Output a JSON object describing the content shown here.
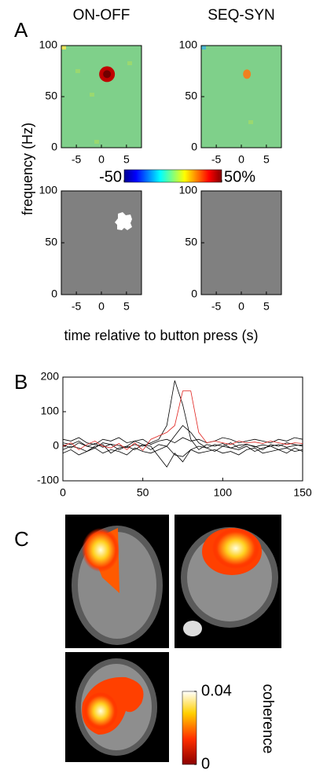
{
  "figure": {
    "panels": [
      "A",
      "B",
      "C"
    ],
    "ylabel": "frequency  (Hz)",
    "xlabel": "time relative to button press (s)"
  },
  "chart_data": [
    {
      "type": "heatmap",
      "title": "ON-OFF",
      "xlim": [
        -8,
        8
      ],
      "xticks": [
        -5,
        0,
        5
      ],
      "ylim": [
        0,
        100
      ],
      "yticks": [
        0,
        50,
        100
      ]
    },
    {
      "type": "heatmap",
      "title": "SEQ-SYN",
      "xlim": [
        -8,
        8
      ],
      "xticks": [
        -5,
        0,
        5
      ],
      "ylim": [
        0,
        100
      ],
      "yticks": [
        0,
        50,
        100
      ]
    },
    {
      "type": "mask",
      "xlim": [
        -8,
        8
      ],
      "xticks": [
        -5,
        0,
        5
      ],
      "ylim": [
        0,
        100
      ],
      "yticks": [
        0,
        50,
        100
      ],
      "color": "#808080"
    },
    {
      "type": "mask",
      "xlim": [
        -8,
        8
      ],
      "xticks": [
        -5,
        0,
        5
      ],
      "ylim": [
        0,
        100
      ],
      "yticks": [
        0,
        50,
        100
      ],
      "color": "#808080"
    },
    {
      "type": "colorbar",
      "colormap": "jet",
      "orientation": "horizontal",
      "lim": [
        -50,
        50
      ],
      "ticks": [
        -50,
        {
          "value": 50,
          "label": "50%"
        }
      ]
    },
    {
      "type": "line",
      "xlim": [
        0,
        150
      ],
      "xticks": [
        0,
        50,
        100,
        150
      ],
      "ylim": [
        -100,
        200
      ],
      "yticks": [
        -100,
        0,
        100,
        200
      ],
      "x": [
        0,
        5,
        10,
        15,
        20,
        25,
        30,
        35,
        40,
        45,
        50,
        55,
        60,
        65,
        70,
        75,
        80,
        85,
        90,
        95,
        100,
        105,
        110,
        115,
        120,
        125,
        130,
        135,
        140,
        145,
        150
      ],
      "series": [
        {
          "color": "#000000",
          "values": [
            5,
            -5,
            10,
            0,
            8,
            -3,
            6,
            2,
            -4,
            5,
            0,
            10,
            20,
            60,
            190,
            120,
            20,
            -10,
            5,
            0,
            8,
            -5,
            3,
            6,
            -2,
            4,
            0,
            5,
            -3,
            2,
            4
          ]
        },
        {
          "color": "#000000",
          "values": [
            10,
            5,
            15,
            0,
            -5,
            10,
            5,
            -10,
            0,
            15,
            5,
            -10,
            5,
            0,
            30,
            60,
            40,
            10,
            -5,
            5,
            0,
            10,
            -5,
            5,
            0,
            -10,
            5,
            0,
            10,
            5,
            0
          ]
        },
        {
          "color": "#000000",
          "values": [
            -10,
            0,
            -5,
            -15,
            0,
            5,
            -20,
            -5,
            0,
            -10,
            5,
            0,
            -30,
            -60,
            -20,
            -45,
            -10,
            0,
            -5,
            -15,
            0,
            -5,
            -10,
            0,
            -15,
            -5,
            0,
            -10,
            -5,
            -15,
            -10
          ]
        },
        {
          "color": "#000000",
          "values": [
            20,
            15,
            25,
            10,
            5,
            20,
            15,
            25,
            10,
            15,
            20,
            5,
            15,
            20,
            10,
            25,
            15,
            20,
            10,
            15,
            25,
            20,
            10,
            15,
            20,
            15,
            10,
            20,
            15,
            25,
            20
          ]
        },
        {
          "color": "#000000",
          "values": [
            -20,
            -10,
            -25,
            -15,
            -5,
            -20,
            -10,
            -15,
            -25,
            -5,
            -15,
            -20,
            -10,
            0,
            -25,
            -30,
            -10,
            -20,
            -15,
            -10,
            -20,
            -15,
            -25,
            -10,
            -5,
            -20,
            -15,
            -10,
            -20,
            -5,
            -15
          ]
        },
        {
          "color": "#e0201c",
          "values": [
            0,
            10,
            -10,
            5,
            15,
            0,
            -5,
            8,
            -10,
            10,
            -12,
            20,
            30,
            40,
            60,
            160,
            160,
            40,
            10,
            15,
            10,
            5,
            15,
            10,
            12,
            8,
            15,
            10,
            5,
            10,
            8
          ]
        }
      ]
    },
    {
      "type": "colorbar",
      "colormap": "hot",
      "orientation": "vertical",
      "label": "coherence",
      "lim": [
        0,
        0.04
      ],
      "ticks": [
        0,
        0.04
      ]
    }
  ]
}
